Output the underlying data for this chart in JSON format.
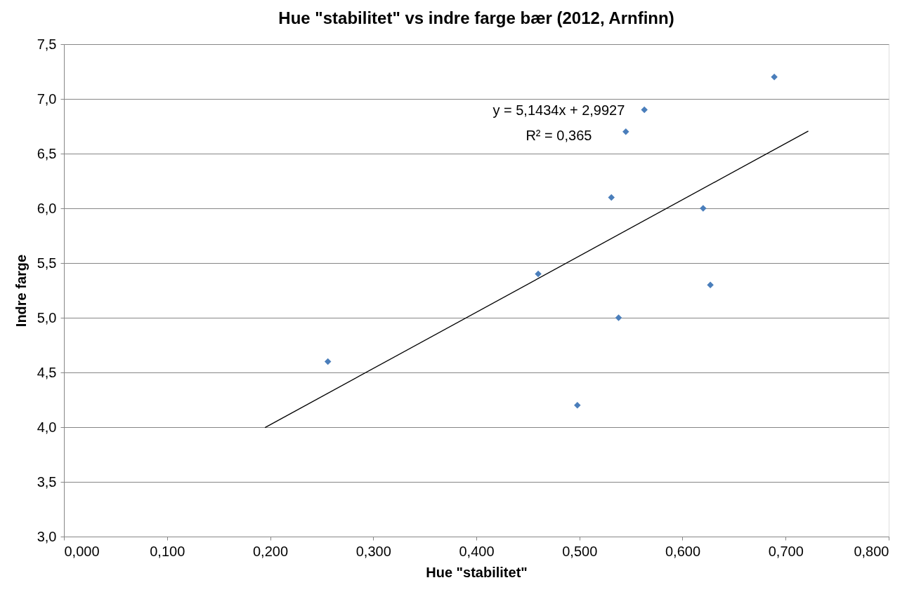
{
  "chart_data": {
    "type": "scatter",
    "title": "Hue \"stabilitet\" vs indre farge bær (2012, Arnfinn)",
    "xlabel": "Hue \"stabilitet\"",
    "ylabel": "Indre farge",
    "series": [
      {
        "color": "#4a7ebb",
        "marker": "diamond",
        "x": [
          0.256,
          0.46,
          0.498,
          0.531,
          0.538,
          0.545,
          0.563,
          0.62,
          0.627,
          0.689
        ],
        "values": [
          4.6,
          5.4,
          4.2,
          6.1,
          5.0,
          6.7,
          6.9,
          6.0,
          5.3,
          7.2
        ]
      },
      {
        "type": "line",
        "color": "#000000",
        "marker": "none",
        "line_style": "solid",
        "x": [
          0.195,
          0.722
        ],
        "values": [
          3.996,
          6.706
        ]
      }
    ],
    "annotations": [
      "y = 5,1434x + 2,9927",
      "R² = 0,365"
    ],
    "xlim": [
      0,
      0.8
    ],
    "ylim": [
      3,
      7.5
    ],
    "xticks": [
      {
        "value": 0,
        "label": "0,000"
      },
      {
        "value": 0.1,
        "label": "0,100"
      },
      {
        "value": 0.2,
        "label": "0,200"
      },
      {
        "value": 0.3,
        "label": "0,300"
      },
      {
        "value": 0.4,
        "label": "0,400"
      },
      {
        "value": 0.5,
        "label": "0,500"
      },
      {
        "value": 0.6,
        "label": "0,600"
      },
      {
        "value": 0.7,
        "label": "0,700"
      },
      {
        "value": 0.8,
        "label": "0,800"
      }
    ],
    "yticks": [
      {
        "value": 3,
        "label": "3,0"
      },
      {
        "value": 3.5,
        "label": "3,5"
      },
      {
        "value": 4,
        "label": "4,0"
      },
      {
        "value": 4.5,
        "label": "4,5"
      },
      {
        "value": 5,
        "label": "5,0"
      },
      {
        "value": 5.5,
        "label": "5,5"
      },
      {
        "value": 6,
        "label": "6,0"
      },
      {
        "value": 6.5,
        "label": "6,5"
      },
      {
        "value": 7,
        "label": "7,0"
      },
      {
        "value": 7.5,
        "label": "7,5"
      }
    ],
    "grid": "y"
  }
}
